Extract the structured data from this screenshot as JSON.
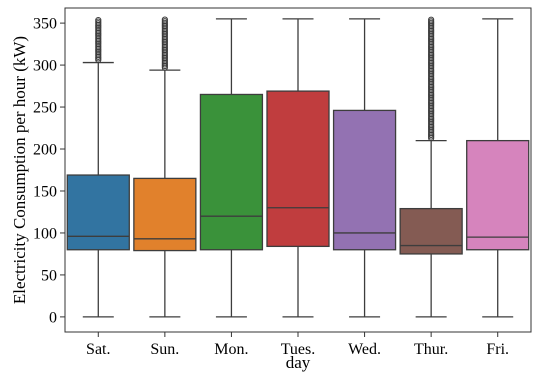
{
  "chart_data": {
    "type": "box",
    "xlabel": "day",
    "ylabel": "Electricity Consumption per hour (kW)",
    "ylim": [
      -18,
      368
    ],
    "yticks": [
      0,
      50,
      100,
      150,
      200,
      250,
      300,
      350
    ],
    "grid": false,
    "legend": "none",
    "categories": [
      "Sat.",
      "Sun.",
      "Mon.",
      "Tues.",
      "Wed.",
      "Thur.",
      "Fri."
    ],
    "boxes": [
      {
        "category": "Sat.",
        "color": "#3274a1",
        "min": 0,
        "q1": 80,
        "median": 96,
        "q3": 169,
        "whisker_high": 303,
        "outliers_from": 306,
        "outliers_to": 355
      },
      {
        "category": "Sun.",
        "color": "#e1812c",
        "min": 0,
        "q1": 79,
        "median": 93,
        "q3": 165,
        "whisker_high": 294,
        "outliers_from": 297,
        "outliers_to": 355
      },
      {
        "category": "Mon.",
        "color": "#3a923a",
        "min": 0,
        "q1": 80,
        "median": 120,
        "q3": 265,
        "whisker_high": 355
      },
      {
        "category": "Tues.",
        "color": "#c03d3e",
        "min": 0,
        "q1": 84,
        "median": 130,
        "q3": 269,
        "whisker_high": 355
      },
      {
        "category": "Wed.",
        "color": "#9372b2",
        "min": 0,
        "q1": 80,
        "median": 100,
        "q3": 246,
        "whisker_high": 355
      },
      {
        "category": "Thur.",
        "color": "#845b53",
        "min": 0,
        "q1": 75,
        "median": 85,
        "q3": 129,
        "whisker_high": 210,
        "outliers_from": 213,
        "outliers_to": 355
      },
      {
        "category": "Fri.",
        "color": "#d684bd",
        "min": 0,
        "q1": 80,
        "median": 95,
        "q3": 210,
        "whisker_high": 355
      }
    ]
  }
}
